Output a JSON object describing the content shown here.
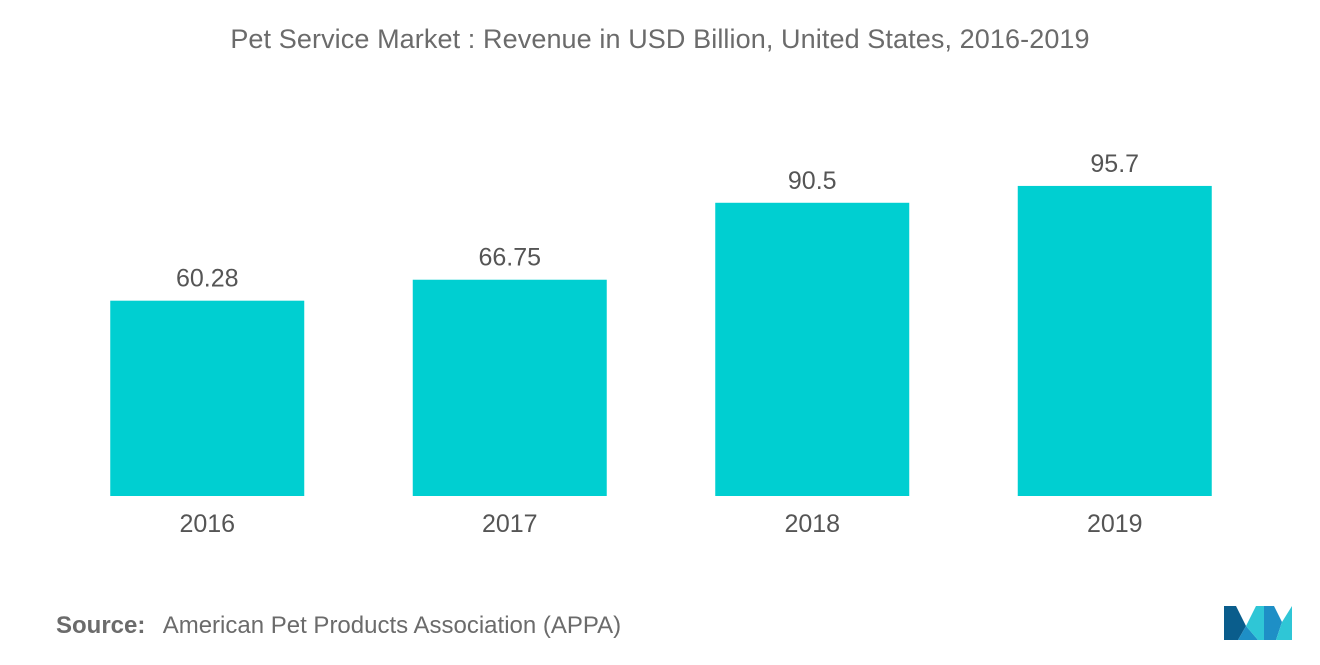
{
  "title": "Pet Service Market : Revenue in USD Billion, United States, 2016-2019",
  "source": {
    "label": "Source:",
    "text": "American Pet Products Association (APPA)"
  },
  "logo": {
    "icon": "mordor-intelligence-logo-icon",
    "colors": [
      "#1e8fc6",
      "#2fc6d6",
      "#0a5d8c"
    ]
  },
  "colors": {
    "bar": "#00cfd1",
    "text": "#555555",
    "axis": "#bfbfbf"
  },
  "chart_data": {
    "type": "bar",
    "title": "Pet Service Market : Revenue in USD Billion, United States, 2016-2019",
    "xlabel": "",
    "ylabel": "",
    "categories": [
      "2016",
      "2017",
      "2018",
      "2019"
    ],
    "values": [
      60.28,
      66.75,
      90.5,
      95.7
    ],
    "value_labels": [
      "60.28",
      "66.75",
      "90.5",
      "95.7"
    ],
    "ylim": [
      0,
      100
    ],
    "grid": false,
    "legend": "none"
  }
}
